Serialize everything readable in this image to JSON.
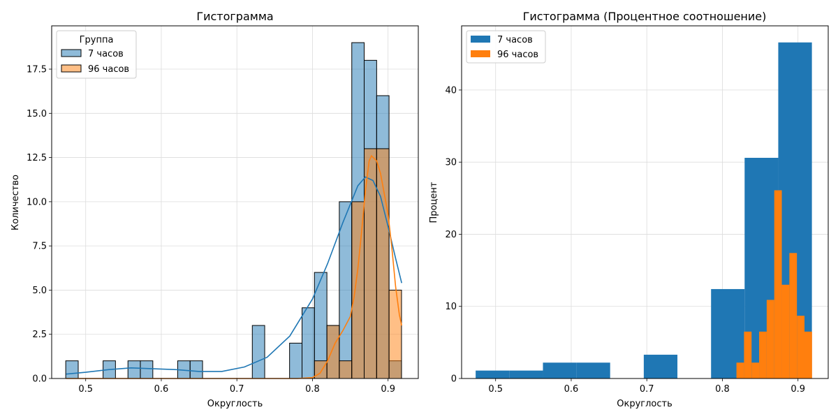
{
  "chart_data": [
    {
      "type": "bar",
      "subtype": "overlaid histogram with kde",
      "title": "Гистограмма",
      "xlabel": "Округлость",
      "ylabel": "Количество",
      "xlim": [
        0.455,
        0.94
      ],
      "ylim": [
        0,
        19.95
      ],
      "x_ticks": [
        0.5,
        0.6,
        0.7,
        0.8,
        0.9
      ],
      "x_tick_labels": [
        "0.5",
        "0.6",
        "0.7",
        "0.8",
        "0.9"
      ],
      "y_ticks": [
        0,
        2.5,
        5.0,
        7.5,
        10.0,
        12.5,
        15.0,
        17.5
      ],
      "y_tick_labels": [
        "0.0",
        "2.5",
        "5.0",
        "7.5",
        "10.0",
        "12.5",
        "15.0",
        "17.5"
      ],
      "grid": true,
      "legend": {
        "title": "Группа",
        "position": "upper-left"
      },
      "series": [
        {
          "name": "7 часов",
          "color": "#1f77b4",
          "fill": "#8fbbd9",
          "bin_edges": [
            0.4736,
            0.4901,
            0.5065,
            0.523,
            0.5394,
            0.5559,
            0.5723,
            0.5888,
            0.6052,
            0.6217,
            0.6381,
            0.6546,
            0.671,
            0.6875,
            0.7039,
            0.7204,
            0.7368,
            0.7533,
            0.7697,
            0.7862,
            0.8026,
            0.8191,
            0.8355,
            0.852,
            0.8684,
            0.8849,
            0.9013,
            0.9178
          ],
          "counts": [
            1,
            0,
            0,
            1,
            0,
            1,
            1,
            0,
            0,
            1,
            1,
            0,
            0,
            0,
            0,
            3,
            0,
            0,
            2,
            4,
            6,
            3,
            10,
            19,
            18,
            16,
            1
          ],
          "kde": {
            "x": [
              0.474,
              0.5,
              0.53,
              0.56,
              0.59,
              0.62,
              0.65,
              0.68,
              0.71,
              0.74,
              0.77,
              0.8,
              0.82,
              0.84,
              0.86,
              0.87,
              0.88,
              0.89,
              0.9,
              0.91,
              0.918
            ],
            "y": [
              0.25,
              0.35,
              0.5,
              0.6,
              0.55,
              0.5,
              0.4,
              0.4,
              0.65,
              1.2,
              2.4,
              4.5,
              6.5,
              8.8,
              10.9,
              11.4,
              11.2,
              10.3,
              8.6,
              6.8,
              5.4
            ]
          }
        },
        {
          "name": "96 часов",
          "color": "#ff7f0e",
          "fill": "#ffbf86",
          "bin_edges": [
            0.8026,
            0.8191,
            0.8355,
            0.852,
            0.8684,
            0.8849,
            0.9013,
            0.9178
          ],
          "counts": [
            1,
            3,
            1,
            10,
            13,
            13,
            5
          ],
          "kde": {
            "x": [
              0.474,
              0.7,
              0.78,
              0.8,
              0.81,
              0.82,
              0.83,
              0.84,
              0.85,
              0.855,
              0.86,
              0.865,
              0.87,
              0.875,
              0.878,
              0.885,
              0.89,
              0.9,
              0.905,
              0.91,
              0.915,
              0.918
            ],
            "y": [
              0,
              0,
              0,
              0.05,
              0.3,
              1.0,
              2.0,
              2.7,
              3.5,
              4.6,
              6.2,
              8.3,
              10.6,
              12.3,
              12.6,
              12.3,
              11.6,
              9.3,
              7.4,
              5.2,
              3.6,
              3.0
            ]
          }
        }
      ]
    },
    {
      "type": "bar",
      "subtype": "overlaid histogram",
      "title": "Гистограмма (Процентное соотношение)",
      "xlabel": "Округлость",
      "ylabel": "Процент",
      "xlim": [
        0.455,
        0.94
      ],
      "ylim": [
        0,
        48.9
      ],
      "x_ticks": [
        0.5,
        0.6,
        0.7,
        0.8,
        0.9
      ],
      "x_tick_labels": [
        "0.5",
        "0.6",
        "0.7",
        "0.8",
        "0.9"
      ],
      "y_ticks": [
        0,
        10,
        20,
        30,
        40
      ],
      "y_tick_labels": [
        "0",
        "10",
        "20",
        "30",
        "40"
      ],
      "grid": true,
      "legend": {
        "position": "upper-left"
      },
      "series": [
        {
          "name": "7 часов",
          "color": "#1f77b4",
          "bin_edges": [
            0.4736,
            0.5181,
            0.5626,
            0.6071,
            0.6515,
            0.696,
            0.7405,
            0.785,
            0.8294,
            0.8739,
            0.9184
          ],
          "values": [
            1.1,
            1.1,
            2.2,
            2.2,
            0,
            3.3,
            0,
            12.4,
            30.6,
            46.6
          ]
        },
        {
          "name": "96 часов",
          "color": "#ff7f0e",
          "bin_edges": [
            0.8186,
            0.8286,
            0.8386,
            0.8486,
            0.8586,
            0.8686,
            0.8786,
            0.8886,
            0.8986,
            0.9086,
            0.9186
          ],
          "values": [
            2.2,
            6.5,
            2.2,
            6.5,
            10.9,
            26.1,
            13.0,
            17.4,
            8.7,
            6.5
          ]
        }
      ]
    }
  ]
}
